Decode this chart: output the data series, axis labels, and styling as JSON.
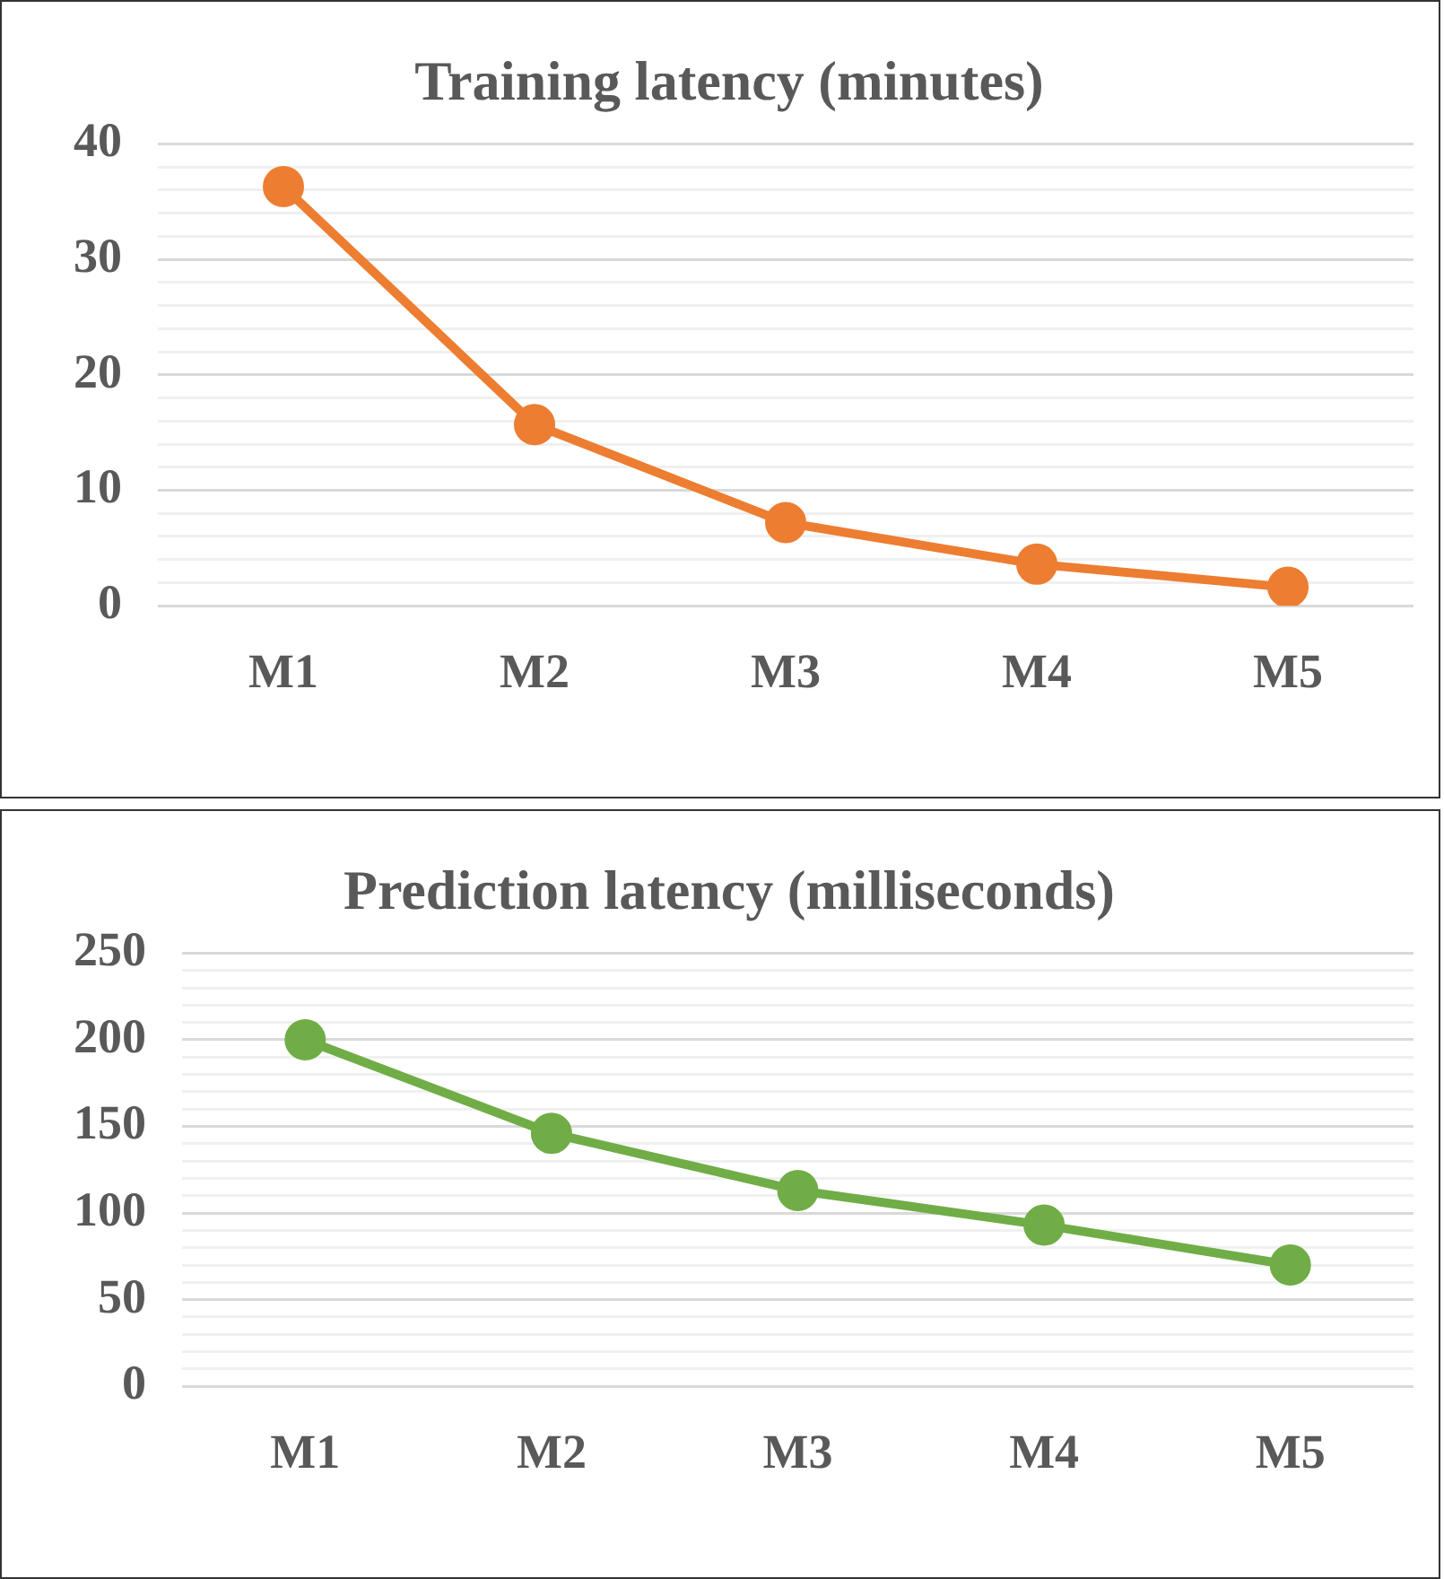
{
  "chart_data": [
    {
      "type": "line",
      "title": "Training latency (minutes)",
      "categories": [
        "M1",
        "M2",
        "M3",
        "M4",
        "M5"
      ],
      "values": [
        36.3,
        15.7,
        7.2,
        3.6,
        1.6
      ],
      "color": "#ed7d31",
      "marker": "circle",
      "ylim": [
        0,
        40
      ],
      "yticks": [
        0,
        {
          "value": 2,
          "label": null
        },
        {
          "value": 4,
          "label": null
        },
        {
          "value": 6,
          "label": null
        },
        {
          "value": 8,
          "label": null
        },
        10,
        {
          "value": 12,
          "label": null
        },
        {
          "value": 14,
          "label": null
        },
        {
          "value": 16,
          "label": null
        },
        {
          "value": 18,
          "label": null
        },
        20,
        {
          "value": 22,
          "label": null
        },
        {
          "value": 24,
          "label": null
        },
        {
          "value": 26,
          "label": null
        },
        {
          "value": 28,
          "label": null
        },
        30,
        {
          "value": 32,
          "label": null
        },
        {
          "value": 34,
          "label": null
        },
        {
          "value": 36,
          "label": null
        },
        {
          "value": 38,
          "label": null
        },
        40
      ],
      "grid": "y",
      "legend": false
    },
    {
      "type": "line",
      "title": "Prediction latency (milliseconds)",
      "categories": [
        "M1",
        "M2",
        "M3",
        "M4",
        "M5"
      ],
      "values": [
        200,
        146,
        113,
        93,
        70
      ],
      "color": "#70ad47",
      "marker": "circle",
      "ylim": [
        0,
        250
      ],
      "yticks": [
        0,
        {
          "value": 10,
          "label": null
        },
        {
          "value": 20,
          "label": null
        },
        {
          "value": 30,
          "label": null
        },
        {
          "value": 40,
          "label": null
        },
        50,
        {
          "value": 60,
          "label": null
        },
        {
          "value": 70,
          "label": null
        },
        {
          "value": 80,
          "label": null
        },
        {
          "value": 90,
          "label": null
        },
        100,
        {
          "value": 110,
          "label": null
        },
        {
          "value": 120,
          "label": null
        },
        {
          "value": 130,
          "label": null
        },
        {
          "value": 140,
          "label": null
        },
        150,
        {
          "value": 160,
          "label": null
        },
        {
          "value": 170,
          "label": null
        },
        {
          "value": 180,
          "label": null
        },
        {
          "value": 190,
          "label": null
        },
        200,
        {
          "value": 210,
          "label": null
        },
        {
          "value": 220,
          "label": null
        },
        {
          "value": 230,
          "label": null
        },
        {
          "value": 240,
          "label": null
        },
        250
      ],
      "grid": "y",
      "legend": false
    }
  ]
}
